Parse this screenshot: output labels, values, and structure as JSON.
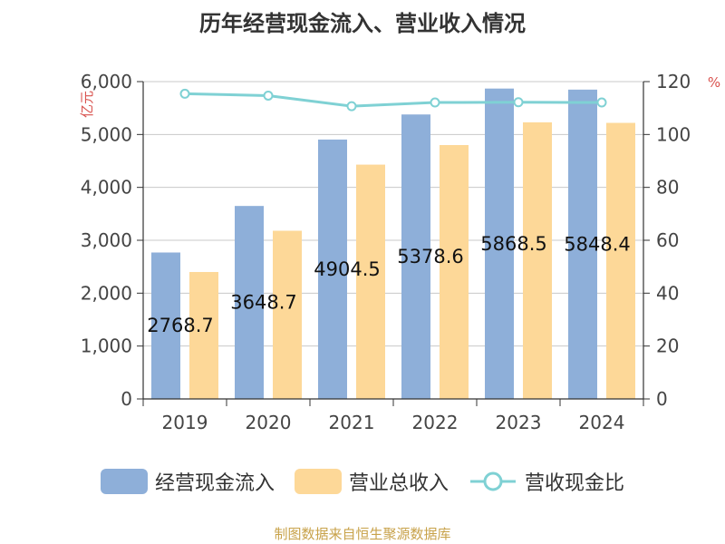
{
  "chart_data": {
    "type": "bar",
    "title": "历年经营现金流入、营业收入情况",
    "categories": [
      "2019",
      "2020",
      "2021",
      "2022",
      "2023",
      "2024"
    ],
    "series": [
      {
        "name": "经营现金流入",
        "type": "bar",
        "axis": "left",
        "values": [
          2768.7,
          3648.7,
          4904.5,
          5378.6,
          5868.5,
          5848.4
        ],
        "data_labels": [
          "2768.7",
          "3648.7",
          "4904.5",
          "5378.6",
          "5868.5",
          "5848.4"
        ]
      },
      {
        "name": "营业总收入",
        "type": "bar",
        "axis": "left",
        "values": [
          2400,
          3180,
          4430,
          4800,
          5230,
          5220
        ]
      },
      {
        "name": "营收现金比",
        "type": "line",
        "axis": "right",
        "values": [
          115.4,
          114.7,
          110.7,
          112.1,
          112.2,
          112.1
        ]
      }
    ],
    "ylabel_left": "亿元",
    "ylabel_right": "%",
    "ylim_left": [
      0,
      6000
    ],
    "ylim_right": [
      0,
      120
    ],
    "yticks_left": [
      "0",
      "1,000",
      "2,000",
      "3,000",
      "4,000",
      "5,000",
      "6,000"
    ],
    "yticks_right": [
      "0",
      "20",
      "40",
      "60",
      "80",
      "100",
      "120"
    ],
    "grid": true,
    "legend_position": "bottom"
  },
  "colors": {
    "cash_inflow": "#8eafd9",
    "revenue": "#fdd898",
    "ratio_line": "#7fd1d4"
  },
  "source": "制图数据来自恒生聚源数据库"
}
